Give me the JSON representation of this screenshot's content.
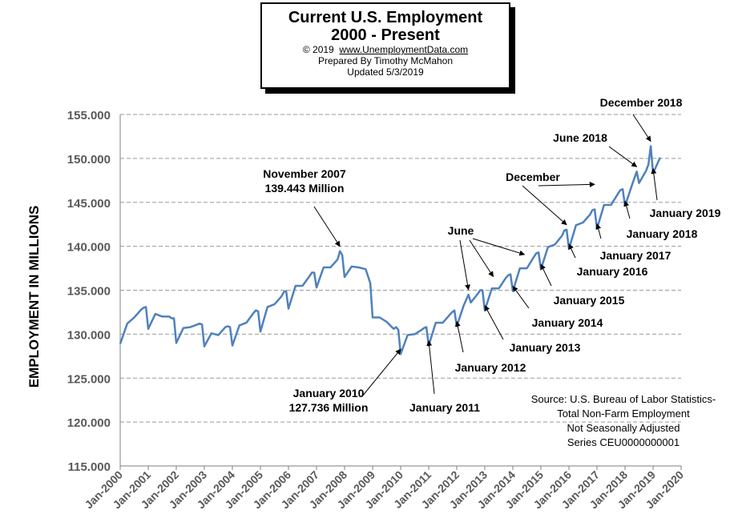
{
  "header": {
    "title_line1": "Current U.S. Employment",
    "title_line2": "2000 - Present",
    "copyright": "© 2019",
    "website": "www.UnemploymentData.com",
    "prepared": "Prepared  By Timothy  McMahon",
    "updated": "Updated   5/3/2019"
  },
  "source_note": [
    "Source: U.S.  Bureau of Labor Statistics-",
    "Total Non-Farm Employment",
    "Not Seasonally Adjusted",
    "Series CEU0000000001"
  ],
  "colors": {
    "line": "#4f81bd",
    "grid": "#9a9a9a",
    "axis": "#7f7f7f"
  },
  "chart_data": {
    "type": "line",
    "title": "Current U.S. Employment 2000 - Present",
    "ylabel": "EMPLOYMENT IN MILLIONS",
    "xlabel": "",
    "ylim": [
      115,
      155
    ],
    "xlim": [
      "Jan-2000",
      "Jan-2020"
    ],
    "y_ticks": [
      "115.000",
      "120.000",
      "125.000",
      "130.000",
      "135.000",
      "140.000",
      "145.000",
      "150.000",
      "155.000"
    ],
    "x_ticks": [
      "Jan-2000",
      "Jan-2001",
      "Jan-2002",
      "Jan-2003",
      "Jan-2004",
      "Jan-2005",
      "Jan-2006",
      "Jan-2007",
      "Jan-2008",
      "Jan-2009",
      "Jan-2010",
      "Jan-2011",
      "Jan-2012",
      "Jan-2013",
      "Jan-2014",
      "Jan-2015",
      "Jan-2016",
      "Jan-2017",
      "Jan-2018",
      "Jan-2019",
      "Jan-2020"
    ],
    "grid": "horizontal dashed",
    "series": [
      {
        "x": [
          "Jan-2000",
          "Apr-2000",
          "Jul-2000",
          "Oct-2000",
          "Nov-2000",
          "Dec-2000",
          "Jan-2001",
          "Apr-2001",
          "Jul-2001",
          "Oct-2001",
          "Nov-2001",
          "Dec-2001",
          "Jan-2002",
          "Apr-2002",
          "Jul-2002",
          "Oct-2002",
          "Nov-2002",
          "Dec-2002",
          "Jan-2003",
          "Apr-2003",
          "Jul-2003",
          "Oct-2003",
          "Nov-2003",
          "Dec-2003",
          "Jan-2004",
          "Apr-2004",
          "Jul-2004",
          "Oct-2004",
          "Nov-2004",
          "Dec-2004",
          "Jan-2005",
          "Apr-2005",
          "Jul-2005",
          "Oct-2005",
          "Nov-2005",
          "Dec-2005",
          "Jan-2006",
          "Apr-2006",
          "Jul-2006",
          "Oct-2006",
          "Nov-2006",
          "Dec-2006",
          "Jan-2007",
          "Apr-2007",
          "Jul-2007",
          "Oct-2007",
          "Nov-2007",
          "Dec-2007",
          "Jan-2008",
          "Apr-2008",
          "Jul-2008",
          "Oct-2008",
          "Nov-2008",
          "Dec-2008",
          "Jan-2009",
          "Apr-2009",
          "Jul-2009",
          "Oct-2009",
          "Nov-2009",
          "Dec-2009",
          "Jan-2010",
          "Apr-2010",
          "Jul-2010",
          "Oct-2010",
          "Nov-2010",
          "Dec-2010",
          "Jan-2011",
          "Apr-2011",
          "Jul-2011",
          "Oct-2011",
          "Nov-2011",
          "Dec-2011",
          "Jan-2012",
          "Apr-2012",
          "Jun-2012",
          "Jul-2012",
          "Oct-2012",
          "Nov-2012",
          "Dec-2012",
          "Jan-2013",
          "Apr-2013",
          "Jul-2013",
          "Oct-2013",
          "Nov-2013",
          "Dec-2013",
          "Jan-2014",
          "Apr-2014",
          "Jul-2014",
          "Oct-2014",
          "Nov-2014",
          "Dec-2014",
          "Jan-2015",
          "Apr-2015",
          "Jul-2015",
          "Oct-2015",
          "Nov-2015",
          "Dec-2015",
          "Jan-2016",
          "Apr-2016",
          "Jul-2016",
          "Oct-2016",
          "Nov-2016",
          "Dec-2016",
          "Jan-2017",
          "Apr-2017",
          "Jul-2017",
          "Oct-2017",
          "Nov-2017",
          "Dec-2017",
          "Jan-2018",
          "Apr-2018",
          "Jun-2018",
          "Jul-2018",
          "Oct-2018",
          "Nov-2018",
          "Dec-2018",
          "Jan-2019",
          "Apr-2019"
        ],
        "values": [
          128.9,
          131.2,
          131.9,
          132.8,
          133.0,
          133.1,
          130.6,
          132.3,
          132.0,
          132.0,
          131.8,
          131.8,
          129.0,
          130.7,
          130.8,
          131.1,
          131.2,
          131.1,
          128.6,
          130.1,
          129.9,
          130.8,
          130.9,
          130.8,
          128.7,
          131.0,
          131.3,
          132.4,
          132.7,
          132.6,
          130.3,
          133.1,
          133.4,
          134.3,
          134.8,
          134.9,
          132.9,
          135.5,
          135.5,
          136.6,
          137.0,
          137.0,
          135.3,
          137.6,
          137.6,
          138.5,
          139.443,
          139.0,
          136.5,
          137.7,
          137.6,
          137.4,
          136.6,
          135.8,
          131.9,
          131.9,
          131.4,
          130.6,
          130.8,
          130.5,
          127.736,
          129.9,
          130.0,
          130.5,
          130.7,
          130.8,
          128.7,
          131.3,
          131.3,
          132.2,
          132.5,
          132.7,
          130.9,
          133.3,
          134.5,
          133.6,
          134.6,
          135.0,
          135.0,
          132.7,
          135.2,
          135.2,
          136.4,
          136.7,
          136.8,
          134.9,
          137.5,
          137.5,
          138.8,
          139.2,
          139.3,
          137.4,
          139.9,
          140.2,
          141.2,
          141.8,
          141.9,
          139.7,
          142.4,
          142.7,
          143.6,
          144.1,
          144.2,
          142.0,
          144.7,
          144.7,
          146.0,
          146.4,
          146.5,
          144.6,
          147.0,
          148.5,
          147.2,
          148.6,
          149.3,
          151.4,
          148.3,
          150.1
        ]
      }
    ],
    "annotations": [
      {
        "label": [
          "November 2007",
          "139.443  Million"
        ],
        "x": "Nov-2007",
        "y": 139.443
      },
      {
        "label": [
          "January 2010",
          "127.736  Million"
        ],
        "x": "Jan-2010",
        "y": 127.736
      },
      {
        "label": [
          "January 2011"
        ],
        "x": "Jan-2011",
        "y": 128.7
      },
      {
        "label": [
          "January 2012"
        ],
        "x": "Jan-2012",
        "y": 130.9
      },
      {
        "label": [
          "January 2013"
        ],
        "x": "Jan-2013",
        "y": 132.7
      },
      {
        "label": [
          "January 2014"
        ],
        "x": "Jan-2014",
        "y": 134.9
      },
      {
        "label": [
          "January 2015"
        ],
        "x": "Jan-2015",
        "y": 137.4
      },
      {
        "label": [
          "January 2016"
        ],
        "x": "Jan-2016",
        "y": 139.7
      },
      {
        "label": [
          "January 2017"
        ],
        "x": "Jan-2017",
        "y": 142.0
      },
      {
        "label": [
          "January 2018"
        ],
        "x": "Jan-2018",
        "y": 144.6
      },
      {
        "label": [
          "January 2019"
        ],
        "x": "Jan-2019",
        "y": 148.3
      },
      {
        "label": [
          "June"
        ],
        "x": "Jun-2012",
        "y": 134.5
      },
      {
        "label": [
          "December"
        ],
        "x": "Dec-2015",
        "y": 141.9
      },
      {
        "label": [
          "June 2018"
        ],
        "x": "Jun-2018",
        "y": 148.5
      },
      {
        "label": [
          "December 2018"
        ],
        "x": "Dec-2018",
        "y": 151.4
      }
    ]
  }
}
